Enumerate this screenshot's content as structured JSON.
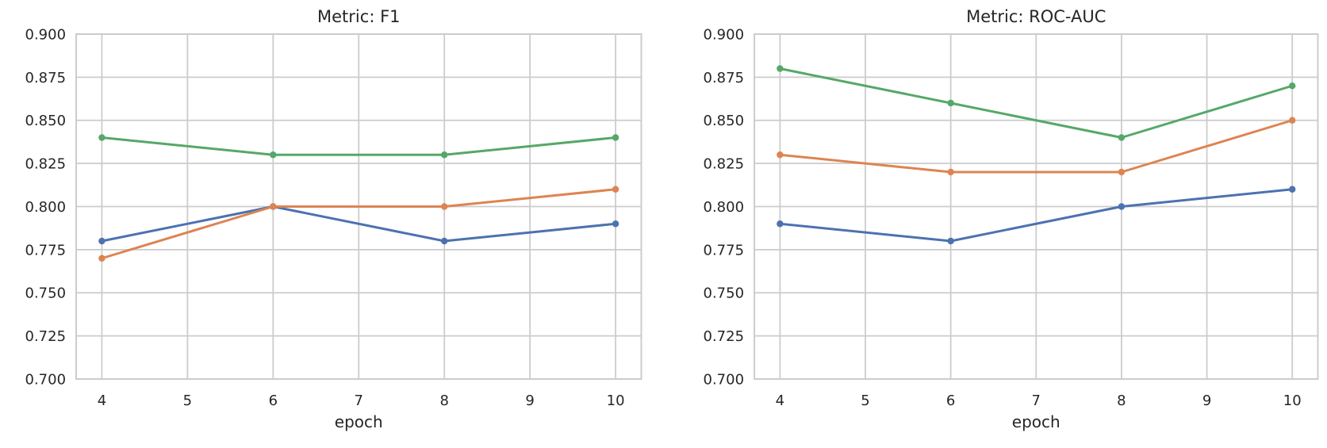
{
  "figure": {
    "background_color": "#ffffff",
    "grid_color": "#cccccc",
    "spine_color": "#cccccc",
    "text_color": "#262626"
  },
  "chart_data": [
    {
      "type": "line",
      "title": "Metric: F1",
      "xlabel": "epoch",
      "ylabel": "",
      "x": [
        4,
        6,
        8,
        10
      ],
      "xticks": [
        4,
        5,
        6,
        7,
        8,
        9,
        10
      ],
      "xlim": [
        3.7,
        10.3
      ],
      "yticks": [
        0.7,
        0.725,
        0.75,
        0.775,
        0.8,
        0.825,
        0.85,
        0.875,
        0.9
      ],
      "ylim": [
        0.7,
        0.9
      ],
      "ytick_decimals": 3,
      "grid": true,
      "legend": "none",
      "marker": "circle",
      "series": [
        {
          "name": "blue",
          "color": "#4C72B0",
          "values": [
            0.78,
            0.8,
            0.78,
            0.79
          ]
        },
        {
          "name": "orange",
          "color": "#DD8452",
          "values": [
            0.77,
            0.8,
            0.8,
            0.81
          ]
        },
        {
          "name": "green",
          "color": "#55A868",
          "values": [
            0.84,
            0.83,
            0.83,
            0.84
          ]
        }
      ]
    },
    {
      "type": "line",
      "title": "Metric: ROC-AUC",
      "xlabel": "epoch",
      "ylabel": "",
      "x": [
        4,
        6,
        8,
        10
      ],
      "xticks": [
        4,
        5,
        6,
        7,
        8,
        9,
        10
      ],
      "xlim": [
        3.7,
        10.3
      ],
      "yticks": [
        0.7,
        0.725,
        0.75,
        0.775,
        0.8,
        0.825,
        0.85,
        0.875,
        0.9
      ],
      "ylim": [
        0.7,
        0.9
      ],
      "ytick_decimals": 3,
      "grid": true,
      "legend": "none",
      "marker": "circle",
      "series": [
        {
          "name": "blue",
          "color": "#4C72B0",
          "values": [
            0.79,
            0.78,
            0.8,
            0.81
          ]
        },
        {
          "name": "orange",
          "color": "#DD8452",
          "values": [
            0.83,
            0.82,
            0.82,
            0.85
          ]
        },
        {
          "name": "green",
          "color": "#55A868",
          "values": [
            0.88,
            0.86,
            0.84,
            0.87
          ]
        }
      ]
    }
  ]
}
